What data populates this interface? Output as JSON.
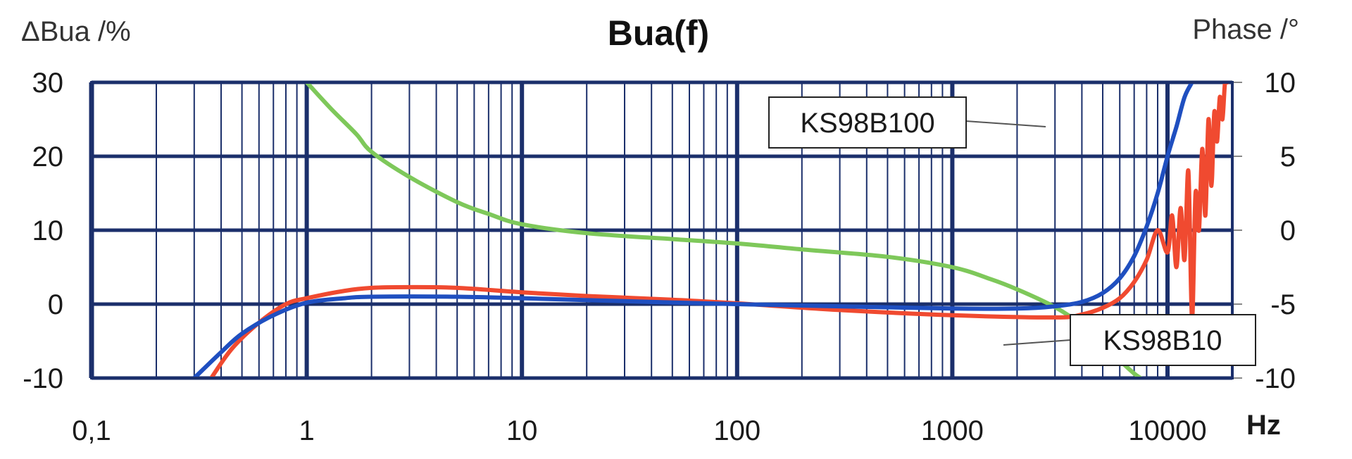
{
  "chart_data": {
    "type": "line",
    "title": "Bua(f)",
    "y_left_label": "ΔBua /%",
    "y_right_label": "Phase /°",
    "x_unit_label": "Hz",
    "x_scale": "log",
    "xlim": [
      0.1,
      20000
    ],
    "ylim_left": [
      -10,
      30
    ],
    "ylim_right": [
      -10,
      10
    ],
    "x_tick_labels": [
      "0,1",
      "1",
      "10",
      "100",
      "1000",
      "10000"
    ],
    "x_tick_values": [
      0.1,
      1,
      10,
      100,
      1000,
      10000
    ],
    "y_left_ticks": [
      -10,
      0,
      10,
      20,
      30
    ],
    "y_right_ticks": [
      -10,
      -5,
      0,
      5,
      10
    ],
    "grid": true,
    "series": [
      {
        "name": "KS98B100",
        "axis": "left",
        "color": "#1f4fc0",
        "x": [
          0.3,
          0.4,
          0.5,
          0.7,
          1,
          1.5,
          2,
          5,
          10,
          30,
          100,
          300,
          1000,
          2000,
          3000,
          4000,
          5000,
          6000,
          7000,
          8000,
          9000,
          10000,
          11000,
          12000,
          13000
        ],
        "y": [
          -10,
          -6.5,
          -4,
          -1.5,
          0.2,
          0.8,
          1,
          1,
          0.8,
          0.4,
          0,
          -0.3,
          -0.6,
          -0.6,
          -0.3,
          0.3,
          1.5,
          3.5,
          6.5,
          10.5,
          15,
          20,
          24,
          28,
          30
        ]
      },
      {
        "name": "KS98B10",
        "axis": "left",
        "color": "#f04a30",
        "x": [
          0.36,
          0.45,
          0.6,
          0.8,
          1,
          1.5,
          2,
          3,
          5,
          10,
          20,
          50,
          100,
          300,
          1000,
          3000,
          4000,
          5000,
          6000,
          7000,
          8000,
          9000,
          10000,
          10500,
          11000,
          11500,
          12000,
          12500,
          13000,
          13500,
          14000,
          14500,
          15000,
          15500,
          16000,
          16500,
          17000,
          17500,
          18000,
          18500,
          19000
        ],
        "y": [
          -10,
          -6,
          -2.5,
          0,
          0.8,
          1.8,
          2.2,
          2.3,
          2.2,
          1.6,
          1.1,
          0.6,
          0.1,
          -0.8,
          -1.5,
          -1.8,
          -1.4,
          -0.5,
          0.8,
          3,
          6,
          10,
          7,
          12,
          5,
          13,
          6,
          18,
          -2,
          15,
          10,
          21,
          12,
          25,
          16,
          26,
          22,
          28,
          25,
          30,
          30
        ]
      },
      {
        "name": "Phase",
        "axis": "right",
        "color": "#7ec85a",
        "x": [
          1,
          1.3,
          1.7,
          2,
          3,
          5,
          7,
          10,
          20,
          50,
          100,
          200,
          500,
          1000,
          1500,
          2000,
          3000,
          4000,
          5000,
          6000,
          7000,
          7500
        ],
        "y": [
          10,
          8.2,
          6.5,
          5.3,
          3.6,
          1.9,
          1.1,
          0.4,
          -0.2,
          -0.6,
          -0.9,
          -1.3,
          -1.8,
          -2.5,
          -3.3,
          -4.0,
          -5.2,
          -6.4,
          -7.6,
          -8.8,
          -9.7,
          -10
        ]
      }
    ],
    "callouts": [
      {
        "text": "KS98B100",
        "series": "KS98B100",
        "position": "upper-right"
      },
      {
        "text": "KS98B10",
        "series": "KS98B10",
        "position": "lower-right"
      }
    ]
  }
}
